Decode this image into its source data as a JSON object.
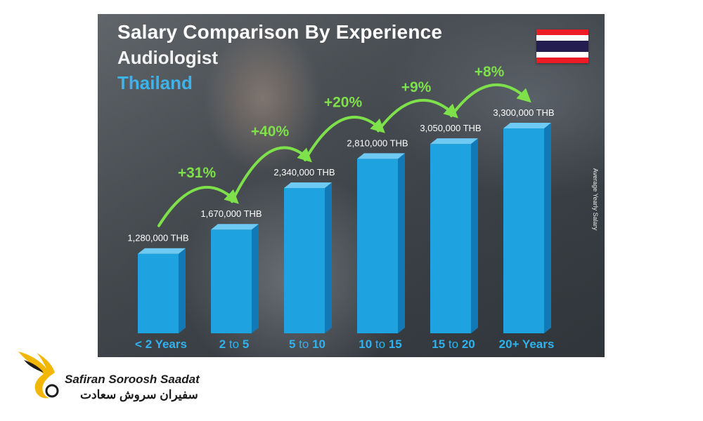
{
  "header": {
    "title": "Salary Comparison By Experience",
    "subtitle": "Audiologist",
    "country": "Thailand"
  },
  "axis_side_label": "Average Yearly Salary",
  "brand": {
    "name_en": "Safiran Soroosh Saadat",
    "name_fa": "سفیران سروش سعادت"
  },
  "colors": {
    "bar_front": "#1ea3e0",
    "bar_side": "#1179b5",
    "bar_top": "#6fcaf3",
    "accent_green": "#7ee04a",
    "country_blue": "#3db3ea",
    "logo_gold": "#f2b705"
  },
  "chart_data": {
    "type": "bar",
    "title": "Salary Comparison By Experience",
    "subtitle": "Audiologist",
    "categories": [
      "< 2 Years",
      "2 to 5",
      "5 to 10",
      "10 to 15",
      "15 to 20",
      "20+ Years"
    ],
    "values": [
      1280000,
      1670000,
      2340000,
      2810000,
      3050000,
      3300000
    ],
    "value_labels": [
      "1,280,000 THB",
      "1,670,000 THB",
      "2,340,000 THB",
      "2,810,000 THB",
      "3,050,000 THB",
      "3,300,000 THB"
    ],
    "unit": "THB",
    "ylabel": "Average Yearly Salary",
    "growth": [
      "+31%",
      "+40%",
      "+20%",
      "+9%",
      "+8%"
    ],
    "ylim": [
      0,
      3300000
    ],
    "grid": false,
    "legend": "none"
  }
}
